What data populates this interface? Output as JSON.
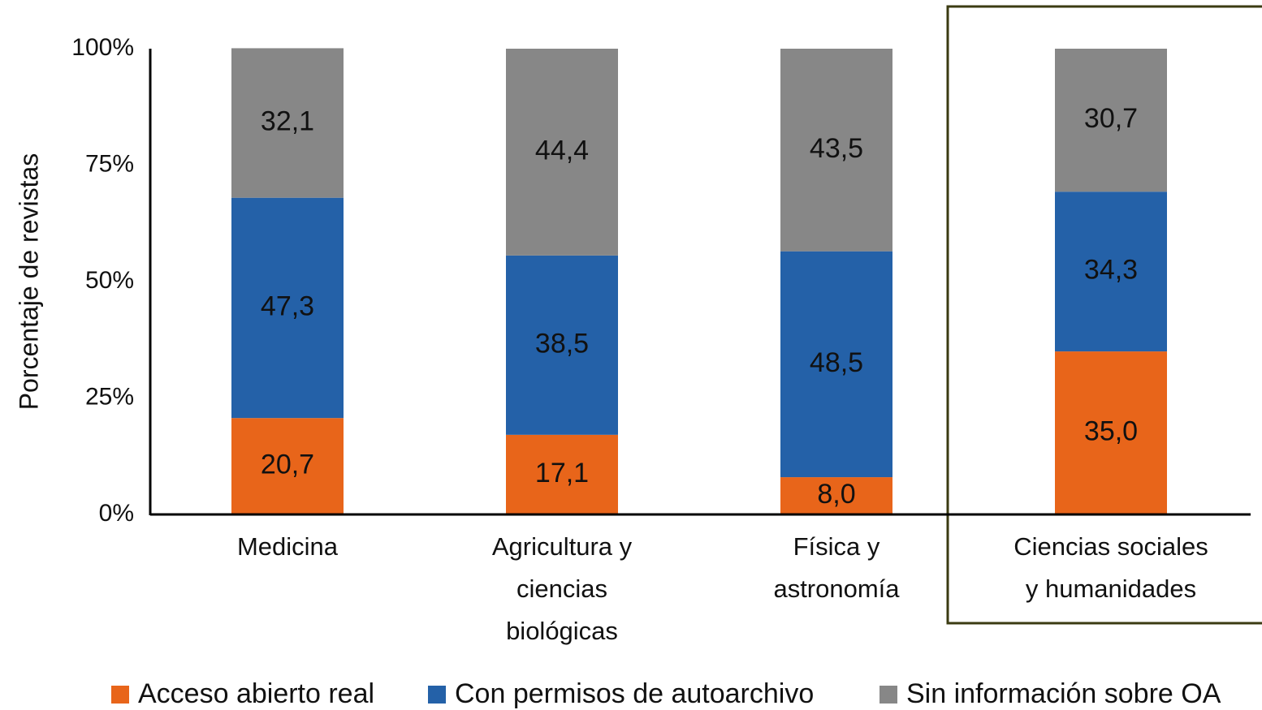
{
  "chart_data": {
    "type": "stacked_bar",
    "y_label": "Porcentaje de revistas",
    "categories": [
      "Medicina",
      "Agricultura y\nciencias\nbiológicas",
      "Física y\nastronomía",
      "Ciencias sociales\ny humanidades"
    ],
    "series": [
      {
        "name": "Acceso abierto real",
        "color": "#e8651a",
        "values": [
          20.7,
          17.1,
          8.0,
          35.0
        ],
        "value_labels": [
          "20,7",
          "17,1",
          "8,0",
          "35,0"
        ]
      },
      {
        "name": "Con permisos de autoarchivo",
        "color": "#2461a8",
        "values": [
          47.3,
          38.5,
          48.5,
          34.3
        ],
        "value_labels": [
          "47,3",
          "38,5",
          "48,5",
          "34,3"
        ]
      },
      {
        "name": "Sin información sobre OA",
        "color": "#878787",
        "values": [
          32.1,
          44.4,
          43.5,
          30.7
        ],
        "value_labels": [
          "32,1",
          "44,4",
          "43,5",
          "30,7"
        ]
      }
    ],
    "ylim": [
      0,
      100
    ],
    "yticks": [
      {
        "value": 0,
        "label": "0%"
      },
      {
        "value": 25,
        "label": "25%"
      },
      {
        "value": 50,
        "label": "50%"
      },
      {
        "value": 75,
        "label": "75%"
      },
      {
        "value": 100,
        "label": "100%"
      }
    ],
    "legend": "bottom"
  }
}
